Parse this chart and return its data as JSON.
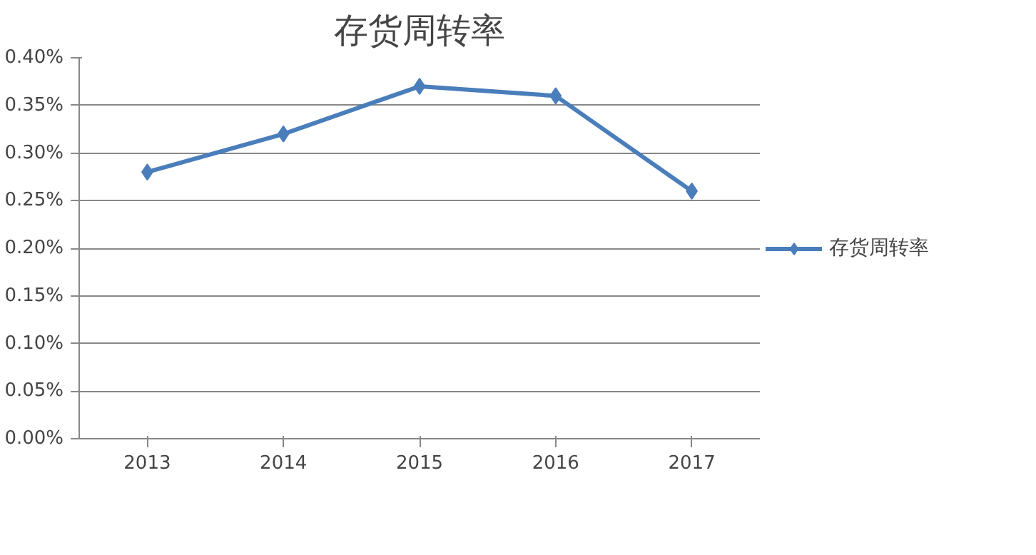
{
  "chart_data": {
    "type": "line",
    "title": "存货周转率",
    "categories": [
      "2013",
      "2014",
      "2015",
      "2016",
      "2017"
    ],
    "series": [
      {
        "name": "存货周转率",
        "color": "#4a7ebb",
        "values": [
          0.28,
          0.32,
          0.37,
          0.36,
          0.26
        ]
      }
    ],
    "ylim": [
      0,
      0.4
    ],
    "yticks": [
      {
        "value": 0,
        "label": "0.00%"
      },
      {
        "value": 0.05,
        "label": "0.05%"
      },
      {
        "value": 0.1,
        "label": "0.10%"
      },
      {
        "value": 0.15,
        "label": "0.15%"
      },
      {
        "value": 0.2,
        "label": "0.20%"
      },
      {
        "value": 0.25,
        "label": "0.25%"
      },
      {
        "value": 0.3,
        "label": "0.30%"
      },
      {
        "value": 0.35,
        "label": "0.35%"
      },
      {
        "value": 0.4,
        "label": "0.40%"
      }
    ],
    "grid": "y",
    "legend": "right",
    "marker": "diamond",
    "line_style": "solid"
  }
}
